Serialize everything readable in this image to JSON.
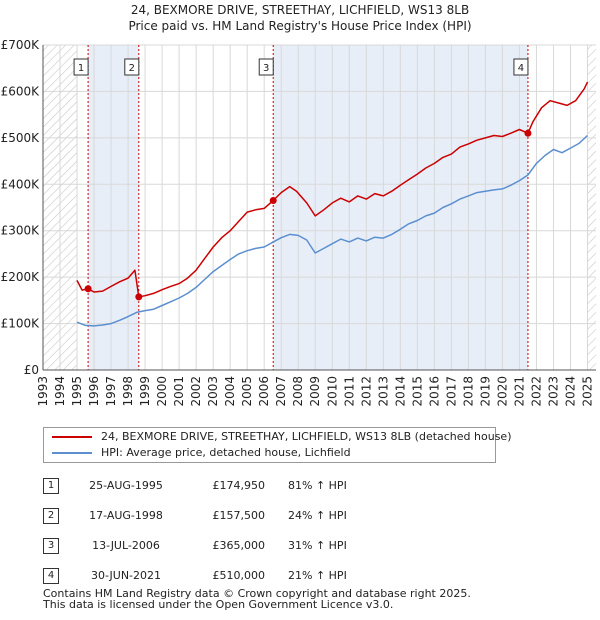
{
  "title_line1": "24, BEXMORE DRIVE, STREETHAY, LICHFIELD, WS13 8LB",
  "title_line2": "Price paid vs. HM Land Registry's House Price Index (HPI)",
  "chart_data": {
    "type": "line",
    "title": "24, BEXMORE DRIVE, STREETHAY, LICHFIELD, WS13 8LB — Price paid vs. HM Land Registry's House Price Index (HPI)",
    "xlim": [
      1993,
      2025
    ],
    "ylim": [
      0,
      700000
    ],
    "x_ticks": [
      "1993",
      "1994",
      "1995",
      "1996",
      "1997",
      "1998",
      "1999",
      "2000",
      "2001",
      "2002",
      "2003",
      "2004",
      "2005",
      "2006",
      "2007",
      "2008",
      "2009",
      "2010",
      "2011",
      "2012",
      "2013",
      "2014",
      "2015",
      "2016",
      "2017",
      "2018",
      "2019",
      "2020",
      "2021",
      "2022",
      "2023",
      "2024",
      "2025"
    ],
    "y_ticks": [
      {
        "value": 0,
        "label": "£0"
      },
      {
        "value": 100000,
        "label": "£100K"
      },
      {
        "value": 200000,
        "label": "£200K"
      },
      {
        "value": 300000,
        "label": "£300K"
      },
      {
        "value": 400000,
        "label": "£400K"
      },
      {
        "value": 500000,
        "label": "£500K"
      },
      {
        "value": 600000,
        "label": "£600K"
      },
      {
        "value": 700000,
        "label": "£700K"
      }
    ],
    "hatched_ranges": [
      [
        1993.0,
        1995.0
      ],
      [
        2025.0,
        2025.5
      ]
    ],
    "shaded_ranges": [
      [
        1995.65,
        1998.63
      ],
      [
        2006.53,
        2021.5
      ]
    ],
    "series": [
      {
        "name": "24, BEXMORE DRIVE, STREETHAY, LICHFIELD, WS13 8LB (detached house)",
        "color": "#cc0000",
        "points": [
          [
            1995.0,
            193000
          ],
          [
            1995.3,
            172000
          ],
          [
            1995.65,
            174950
          ],
          [
            1996.0,
            168000
          ],
          [
            1996.5,
            170000
          ],
          [
            1997.0,
            180000
          ],
          [
            1997.5,
            190000
          ],
          [
            1998.0,
            198000
          ],
          [
            1998.4,
            215000
          ],
          [
            1998.63,
            157500
          ],
          [
            1999.0,
            160000
          ],
          [
            1999.5,
            165000
          ],
          [
            2000.0,
            173000
          ],
          [
            2000.5,
            180000
          ],
          [
            2001.0,
            186000
          ],
          [
            2001.5,
            198000
          ],
          [
            2002.0,
            215000
          ],
          [
            2002.5,
            240000
          ],
          [
            2003.0,
            265000
          ],
          [
            2003.5,
            285000
          ],
          [
            2004.0,
            300000
          ],
          [
            2004.5,
            320000
          ],
          [
            2005.0,
            340000
          ],
          [
            2005.5,
            345000
          ],
          [
            2006.0,
            348000
          ],
          [
            2006.53,
            365000
          ],
          [
            2007.0,
            382000
          ],
          [
            2007.5,
            395000
          ],
          [
            2007.9,
            385000
          ],
          [
            2008.5,
            360000
          ],
          [
            2009.0,
            332000
          ],
          [
            2009.5,
            345000
          ],
          [
            2010.0,
            360000
          ],
          [
            2010.5,
            370000
          ],
          [
            2011.0,
            362000
          ],
          [
            2011.5,
            375000
          ],
          [
            2012.0,
            368000
          ],
          [
            2012.5,
            380000
          ],
          [
            2013.0,
            375000
          ],
          [
            2013.5,
            385000
          ],
          [
            2014.0,
            398000
          ],
          [
            2014.5,
            410000
          ],
          [
            2015.0,
            422000
          ],
          [
            2015.5,
            435000
          ],
          [
            2016.0,
            445000
          ],
          [
            2016.5,
            458000
          ],
          [
            2017.0,
            465000
          ],
          [
            2017.5,
            480000
          ],
          [
            2018.0,
            487000
          ],
          [
            2018.5,
            495000
          ],
          [
            2019.0,
            500000
          ],
          [
            2019.5,
            505000
          ],
          [
            2020.0,
            503000
          ],
          [
            2020.5,
            510000
          ],
          [
            2021.0,
            518000
          ],
          [
            2021.5,
            510000
          ],
          [
            2021.8,
            535000
          ],
          [
            2022.3,
            565000
          ],
          [
            2022.8,
            580000
          ],
          [
            2023.3,
            575000
          ],
          [
            2023.8,
            570000
          ],
          [
            2024.3,
            580000
          ],
          [
            2024.8,
            605000
          ],
          [
            2025.0,
            620000
          ]
        ]
      },
      {
        "name": "HPI: Average price, detached house, Lichfield",
        "color": "#5b8fd0",
        "points": [
          [
            1995.0,
            103000
          ],
          [
            1995.5,
            96000
          ],
          [
            1996.0,
            95000
          ],
          [
            1996.5,
            97000
          ],
          [
            1997.0,
            100000
          ],
          [
            1997.5,
            107000
          ],
          [
            1998.0,
            115000
          ],
          [
            1998.5,
            124000
          ],
          [
            1999.0,
            128000
          ],
          [
            1999.5,
            131000
          ],
          [
            2000.0,
            139000
          ],
          [
            2000.5,
            147000
          ],
          [
            2001.0,
            155000
          ],
          [
            2001.5,
            165000
          ],
          [
            2002.0,
            178000
          ],
          [
            2002.5,
            195000
          ],
          [
            2003.0,
            212000
          ],
          [
            2003.5,
            225000
          ],
          [
            2004.0,
            238000
          ],
          [
            2004.5,
            250000
          ],
          [
            2005.0,
            257000
          ],
          [
            2005.5,
            262000
          ],
          [
            2006.0,
            265000
          ],
          [
            2006.5,
            275000
          ],
          [
            2007.0,
            285000
          ],
          [
            2007.5,
            292000
          ],
          [
            2008.0,
            290000
          ],
          [
            2008.5,
            280000
          ],
          [
            2009.0,
            252000
          ],
          [
            2009.5,
            262000
          ],
          [
            2010.0,
            272000
          ],
          [
            2010.5,
            282000
          ],
          [
            2011.0,
            276000
          ],
          [
            2011.5,
            284000
          ],
          [
            2012.0,
            278000
          ],
          [
            2012.5,
            286000
          ],
          [
            2013.0,
            284000
          ],
          [
            2013.5,
            292000
          ],
          [
            2014.0,
            303000
          ],
          [
            2014.5,
            315000
          ],
          [
            2015.0,
            322000
          ],
          [
            2015.5,
            332000
          ],
          [
            2016.0,
            338000
          ],
          [
            2016.5,
            350000
          ],
          [
            2017.0,
            358000
          ],
          [
            2017.5,
            368000
          ],
          [
            2018.0,
            375000
          ],
          [
            2018.5,
            382000
          ],
          [
            2019.0,
            385000
          ],
          [
            2019.5,
            388000
          ],
          [
            2020.0,
            390000
          ],
          [
            2020.5,
            398000
          ],
          [
            2021.0,
            408000
          ],
          [
            2021.5,
            420000
          ],
          [
            2022.0,
            445000
          ],
          [
            2022.5,
            462000
          ],
          [
            2023.0,
            475000
          ],
          [
            2023.5,
            468000
          ],
          [
            2024.0,
            478000
          ],
          [
            2024.5,
            488000
          ],
          [
            2025.0,
            505000
          ]
        ]
      }
    ],
    "markers": [
      {
        "label": "1",
        "x": 1995.65,
        "y": 174950
      },
      {
        "label": "2",
        "x": 1998.63,
        "y": 157500
      },
      {
        "label": "3",
        "x": 2006.53,
        "y": 365000
      },
      {
        "label": "4",
        "x": 2021.5,
        "y": 510000
      }
    ]
  },
  "legend": [
    {
      "label": "24, BEXMORE DRIVE, STREETHAY, LICHFIELD, WS13 8LB (detached house)",
      "color": "#cc0000"
    },
    {
      "label": "HPI: Average price, detached house, Lichfield",
      "color": "#5b8fd0"
    }
  ],
  "transactions": [
    {
      "num": "1",
      "date": "25-AUG-1995",
      "price": "£174,950",
      "hpi": "81% ↑ HPI"
    },
    {
      "num": "2",
      "date": "17-AUG-1998",
      "price": "£157,500",
      "hpi": "24% ↑ HPI"
    },
    {
      "num": "3",
      "date": "13-JUL-2006",
      "price": "£365,000",
      "hpi": "31% ↑ HPI"
    },
    {
      "num": "4",
      "date": "30-JUN-2021",
      "price": "£510,000",
      "hpi": "21% ↑ HPI"
    }
  ],
  "footer_line1": "Contains HM Land Registry data © Crown copyright and database right 2025.",
  "footer_line2": "This data is licensed under the Open Government Licence v3.0."
}
